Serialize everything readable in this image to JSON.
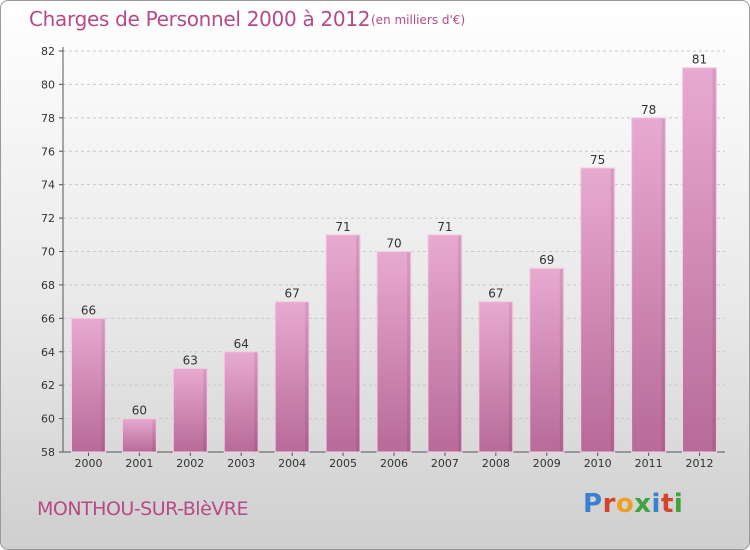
{
  "header": {
    "title": "Charges de Personnel 2000 à 2012",
    "subtitle": "(en milliers d'€)"
  },
  "footer": {
    "location": "MONTHOU-SUR-BlèVRE",
    "logo": "Proxiti",
    "logo_colors": [
      "#3a7fd0",
      "#d4432a",
      "#f0a020",
      "#3ea33c",
      "#3a7fd0",
      "#d4432a",
      "#3ea33c"
    ]
  },
  "chart_data": {
    "type": "bar",
    "title": "Charges de Personnel 2000 à 2012",
    "subtitle": "(en milliers d'€)",
    "categories": [
      "2000",
      "2001",
      "2002",
      "2003",
      "2004",
      "2005",
      "2006",
      "2007",
      "2008",
      "2009",
      "2010",
      "2011",
      "2012"
    ],
    "values": [
      66,
      60,
      63,
      64,
      67,
      71,
      70,
      71,
      67,
      69,
      75,
      78,
      81
    ],
    "yticks": [
      58,
      60,
      62,
      64,
      66,
      68,
      70,
      72,
      74,
      76,
      78,
      80,
      82
    ],
    "ylim": [
      58,
      82
    ],
    "xlabel": "",
    "ylabel": "",
    "grid": true,
    "bar_color": "#d98bb8",
    "bar_color_light": "#e8aad0",
    "bar_color_dark": "#b86a98"
  }
}
